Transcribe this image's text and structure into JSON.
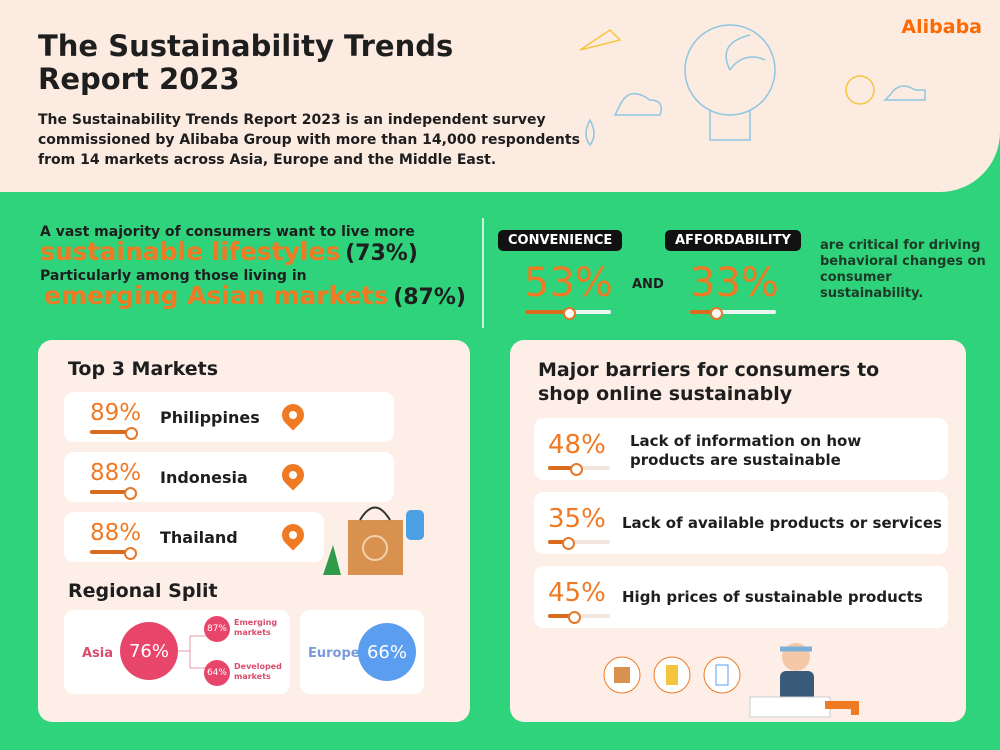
{
  "header": {
    "title": "The Sustainability Trends Report 2023",
    "intro": "The Sustainability Trends Report 2023 is an independent survey commissioned by Alibaba Group with more than 14,000 respondents from 14 markets across Asia, Europe and the Middle East.",
    "logo": "Alibaba"
  },
  "lead": {
    "line1": "A vast majority of consumers want to live more",
    "hl1": "sustainable lifestyles",
    "val1": "(73%)",
    "line2": "Particularly among those living in",
    "hl2": "emerging Asian markets",
    "val2": "(87%)"
  },
  "drivers": {
    "items": [
      {
        "label": "CONVENIENCE",
        "value": "53%",
        "fraction": 0.53
      },
      {
        "label": "AFFORDABILITY",
        "value": "33%",
        "fraction": 0.33
      }
    ],
    "and": "AND",
    "text": "are critical for driving behavioral changes on consumer sustainability."
  },
  "markets": {
    "title": "Top 3 Markets",
    "items": [
      {
        "value": "89%",
        "name": "Philippines",
        "fraction": 0.89
      },
      {
        "value": "88%",
        "name": "Indonesia",
        "fraction": 0.88
      },
      {
        "value": "88%",
        "name": "Thailand",
        "fraction": 0.88
      }
    ]
  },
  "regional": {
    "title": "Regional Split",
    "asia": {
      "label": "Asia",
      "value": "76%",
      "emerging": "87%",
      "emerging_label": "Emerging markets",
      "developed": "64%",
      "developed_label": "Developed markets"
    },
    "europe": {
      "label": "Europe",
      "value": "66%"
    }
  },
  "barriers": {
    "title": "Major barriers for consumers to shop online sustainably",
    "items": [
      {
        "value": "48%",
        "text": "Lack of information on how products are sustainable",
        "fraction": 0.48
      },
      {
        "value": "35%",
        "text": "Lack of available products or services",
        "fraction": 0.35
      },
      {
        "value": "45%",
        "text": "High prices of sustainable products",
        "fraction": 0.45
      }
    ]
  },
  "colors": {
    "accent": "#f07a24",
    "green": "#2fd37c",
    "asia": "#e8456b",
    "europe": "#5b9ef0"
  }
}
